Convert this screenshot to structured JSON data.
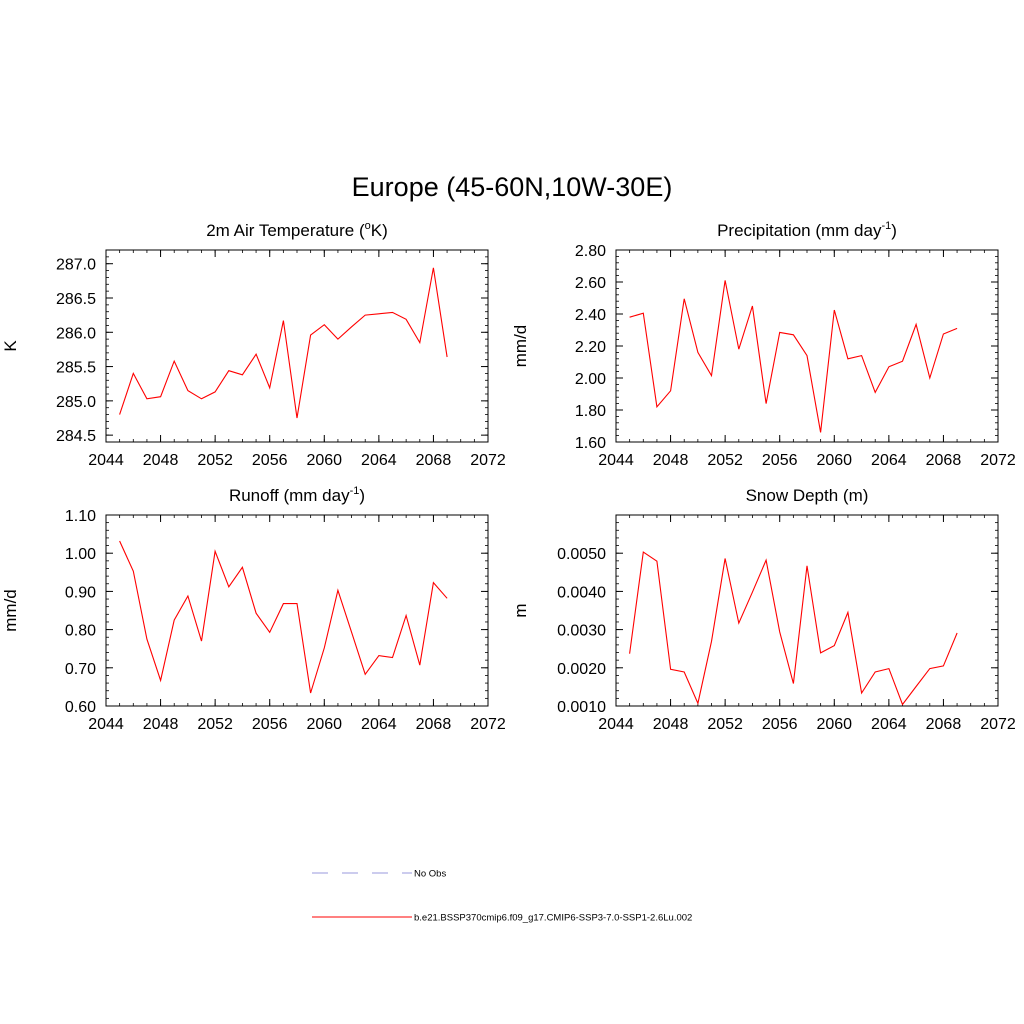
{
  "title": "Europe (45-60N,10W-30E)",
  "legend": [
    {
      "label": "No Obs",
      "color": "#9999dd",
      "dash": true
    },
    {
      "label": "b.e21.BSSP370cmip6.f09_g17.CMIP6-SSP3-7.0-SSP1-2.6Lu.002",
      "color": "#ff0000",
      "dash": false
    }
  ],
  "chart_data": [
    {
      "type": "line",
      "title": "2m Air Temperature (",
      "title_sup": "o",
      "title_after": "K)",
      "title_tail": "",
      "ylabel": "K",
      "xlim": [
        2044,
        2072
      ],
      "ylim": [
        284.4,
        287.2
      ],
      "xticks": [
        2044,
        2048,
        2052,
        2056,
        2060,
        2064,
        2068,
        2072
      ],
      "xtick_labels": [
        "2044",
        "2048",
        "2052",
        "2056",
        "2060",
        "2064",
        "2068",
        "2072"
      ],
      "yticks": [
        284.5,
        285.0,
        285.5,
        286.0,
        286.5,
        287.0
      ],
      "ytick_labels": [
        "284.5",
        "285.0",
        "285.5",
        "286.0",
        "286.5",
        "287.0"
      ],
      "yminor": 0.1,
      "series": [
        {
          "color": "#ff0000",
          "x": [
            2045,
            2046,
            2047,
            2048,
            2049,
            2050,
            2051,
            2052,
            2053,
            2054,
            2055,
            2056,
            2057,
            2058,
            2059,
            2060,
            2061,
            2062,
            2063,
            2064,
            2065,
            2066,
            2067,
            2068,
            2069
          ],
          "y": [
            284.8,
            285.4,
            285.03,
            285.06,
            285.58,
            285.15,
            285.03,
            285.13,
            285.44,
            285.38,
            285.68,
            285.19,
            286.17,
            284.75,
            285.96,
            286.11,
            285.9,
            286.08,
            286.25,
            286.27,
            286.29,
            286.19,
            285.85,
            286.94,
            285.64
          ]
        }
      ]
    },
    {
      "type": "line",
      "title": "Precipitation (mm day",
      "title_sup": "-1",
      "title_after": ")",
      "title_tail": "",
      "ylabel": "mm/d",
      "xlim": [
        2044,
        2072
      ],
      "ylim": [
        1.6,
        2.8
      ],
      "xticks": [
        2044,
        2048,
        2052,
        2056,
        2060,
        2064,
        2068,
        2072
      ],
      "xtick_labels": [
        "2044",
        "2048",
        "2052",
        "2056",
        "2060",
        "2064",
        "2068",
        "2072"
      ],
      "yticks": [
        1.6,
        1.8,
        2.0,
        2.2,
        2.4,
        2.6,
        2.8
      ],
      "ytick_labels": [
        "1.60",
        "1.80",
        "2.00",
        "2.20",
        "2.40",
        "2.60",
        "2.80"
      ],
      "yminor": 0.04,
      "series": [
        {
          "color": "#ff0000",
          "x": [
            2045,
            2046,
            2047,
            2048,
            2049,
            2050,
            2051,
            2052,
            2053,
            2054,
            2055,
            2056,
            2057,
            2058,
            2059,
            2060,
            2061,
            2062,
            2063,
            2064,
            2065,
            2066,
            2067,
            2068,
            2069
          ],
          "y": [
            2.38,
            2.405,
            1.82,
            1.92,
            2.495,
            2.16,
            2.015,
            2.61,
            2.18,
            2.45,
            1.84,
            2.285,
            2.27,
            2.14,
            1.66,
            2.425,
            2.12,
            2.14,
            1.91,
            2.07,
            2.105,
            2.335,
            2.0,
            2.275,
            2.31
          ]
        }
      ]
    },
    {
      "type": "line",
      "title": "Runoff (mm day",
      "title_sup": "-1",
      "title_after": ")",
      "title_tail": "",
      "ylabel": "mm/d",
      "xlim": [
        2044,
        2072
      ],
      "ylim": [
        0.6,
        1.1
      ],
      "xticks": [
        2044,
        2048,
        2052,
        2056,
        2060,
        2064,
        2068,
        2072
      ],
      "xtick_labels": [
        "2044",
        "2048",
        "2052",
        "2056",
        "2060",
        "2064",
        "2068",
        "2072"
      ],
      "yticks": [
        0.6,
        0.7,
        0.8,
        0.9,
        1.0,
        1.1
      ],
      "ytick_labels": [
        "0.60",
        "0.70",
        "0.80",
        "0.90",
        "1.00",
        "1.10"
      ],
      "yminor": 0.02,
      "series": [
        {
          "color": "#ff0000",
          "x": [
            2045,
            2046,
            2047,
            2048,
            2049,
            2050,
            2051,
            2052,
            2053,
            2054,
            2055,
            2056,
            2057,
            2058,
            2059,
            2060,
            2061,
            2062,
            2063,
            2064,
            2065,
            2066,
            2067,
            2068,
            2069
          ],
          "y": [
            1.032,
            0.953,
            0.775,
            0.667,
            0.825,
            0.888,
            0.77,
            1.005,
            0.912,
            0.963,
            0.843,
            0.793,
            0.868,
            0.868,
            0.634,
            0.752,
            0.903,
            0.793,
            0.683,
            0.732,
            0.727,
            0.837,
            0.707,
            0.923,
            0.882
          ]
        }
      ]
    },
    {
      "type": "line",
      "title": "Snow Depth (m)",
      "title_sup": "",
      "title_after": "",
      "title_tail": "",
      "ylabel": "m",
      "xlim": [
        2044,
        2072
      ],
      "ylim": [
        0.001,
        0.006
      ],
      "xticks": [
        2044,
        2048,
        2052,
        2056,
        2060,
        2064,
        2068,
        2072
      ],
      "xtick_labels": [
        "2044",
        "2048",
        "2052",
        "2056",
        "2060",
        "2064",
        "2068",
        "2072"
      ],
      "yticks": [
        0.001,
        0.002,
        0.003,
        0.004,
        0.005
      ],
      "ytick_labels": [
        "0.0010",
        "0.0020",
        "0.0030",
        "0.0040",
        "0.0050"
      ],
      "yminor": 0.0002,
      "series": [
        {
          "color": "#ff0000",
          "x": [
            2045,
            2046,
            2047,
            2048,
            2049,
            2050,
            2051,
            2052,
            2053,
            2054,
            2055,
            2056,
            2057,
            2058,
            2059,
            2060,
            2061,
            2062,
            2063,
            2064,
            2065,
            2066,
            2067,
            2068,
            2069
          ],
          "y": [
            0.00237,
            0.00503,
            0.00479,
            0.00196,
            0.00189,
            0.00107,
            0.00269,
            0.00486,
            0.00317,
            0.00398,
            0.00482,
            0.00294,
            0.00159,
            0.00467,
            0.00239,
            0.00258,
            0.00345,
            0.00134,
            0.00189,
            0.00198,
            0.00104,
            0.00151,
            0.00198,
            0.00205,
            0.00291
          ]
        }
      ]
    }
  ]
}
